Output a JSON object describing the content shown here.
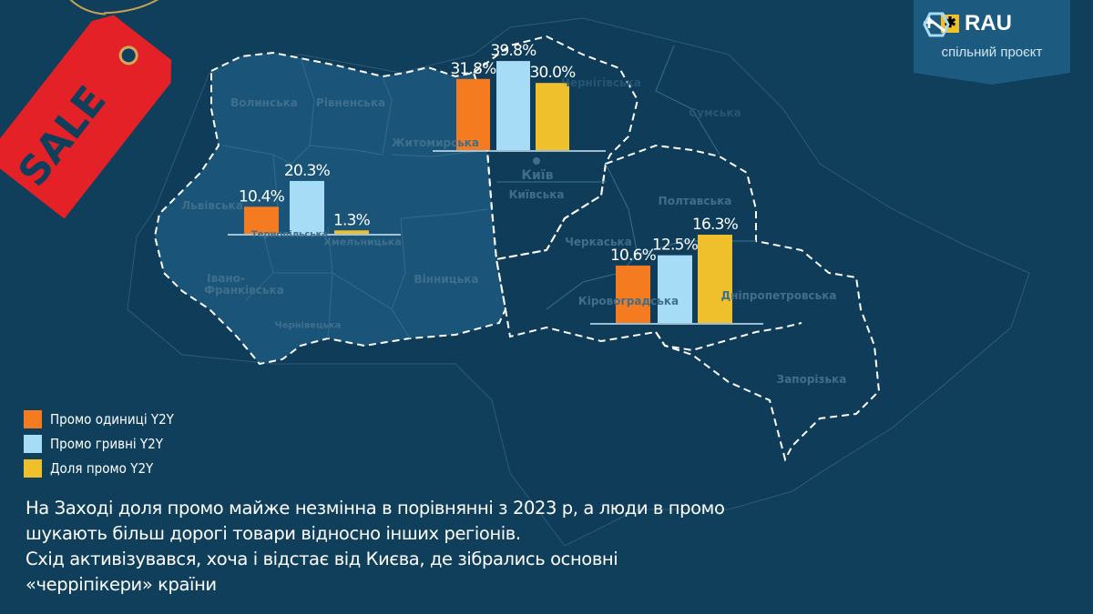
{
  "logo": {
    "brand": "RAU",
    "plus": "+",
    "subtitle": "спільний проєкт"
  },
  "sale_tag": {
    "text": "SALE"
  },
  "map_labels": {
    "volyn": "Волинська",
    "rivne": "Рівненська",
    "zhytomyr": "Житомирська",
    "lviv": "Львівська",
    "ternopil": "Тернопільська",
    "khmelnytskyi": "Хмельницька",
    "ivano_frankivsk_1": "Івано-",
    "ivano_frankivsk_2": "Франківська",
    "chernivtsi": "Чернівецька",
    "vinnytsia": "Вінницька",
    "kyiv_city": "Київ",
    "kyiv": "Київська",
    "chernihiv": "Чернігівська",
    "sumy": "Сумська",
    "poltava": "Полтавська",
    "cherkasy": "Черкаська",
    "kirovohrad": "Кіровоградська",
    "dnipro": "Дніпропетровська",
    "zaporizhzhia": "Запорізька"
  },
  "colors": {
    "units": "#f47b20",
    "uah": "#a6dcf6",
    "share": "#f0c02c",
    "background": "#103f5c",
    "sale": "#e42127"
  },
  "chart_data": {
    "type": "bar",
    "series_names": [
      "Промо одиниці Y2Y",
      "Промо гривні Y2Y",
      "Доля промо Y2Y"
    ],
    "legend_position": "bottom-left",
    "grid": false,
    "groups": [
      {
        "values": [
          10.4,
          20.3,
          1.3
        ],
        "labels": [
          "10.4%",
          "20.3%",
          "1.3%"
        ]
      },
      {
        "values": [
          31.8,
          39.8,
          30.0
        ],
        "labels": [
          "31.8%",
          "39.8%",
          "30.0%"
        ]
      },
      {
        "values": [
          10.6,
          12.5,
          16.3
        ],
        "labels": [
          "10.6%",
          "12.5%",
          "16.3%"
        ]
      }
    ]
  },
  "legend": [
    {
      "label": "Промо одиниці Y2Y"
    },
    {
      "label": "Промо гривні Y2Y"
    },
    {
      "label": "Доля промо Y2Y"
    }
  ],
  "text": {
    "line1": "На Заході доля промо майже незмінна в порівнянні з 2023 р, а люди в промо",
    "line2": "шукають більш дорогі товари відносно інших регіонів.",
    "line3": "Схід активізувався, хоча і відстає від Києва, де зібрались основні",
    "line4": "«черріпікери» країни"
  }
}
